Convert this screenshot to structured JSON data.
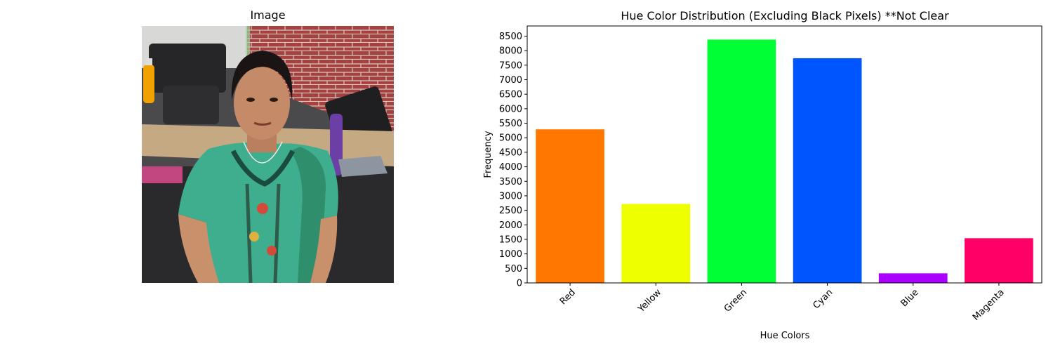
{
  "image_panel": {
    "title": "Image"
  },
  "chart_data": {
    "type": "bar",
    "title": "Hue Color Distribution (Excluding Black Pixels) **Not Clear",
    "xlabel": "Hue Colors",
    "ylabel": "Frequency",
    "categories": [
      "Red",
      "Yellow",
      "Green",
      "Cyan",
      "Blue",
      "Magenta"
    ],
    "values": [
      5290,
      2720,
      8380,
      7740,
      330,
      1540
    ],
    "colors": [
      "#ff7700",
      "#eeff00",
      "#00ff33",
      "#0055ff",
      "#aa00ff",
      "#ff0066"
    ],
    "ylim": [
      0,
      8850
    ],
    "yticks": [
      0,
      500,
      1000,
      1500,
      2000,
      2500,
      3000,
      3500,
      4000,
      4500,
      5000,
      5500,
      6000,
      6500,
      7000,
      7500,
      8000,
      8500
    ],
    "xtick_rotation": 45,
    "grid": false,
    "legend": "none"
  }
}
